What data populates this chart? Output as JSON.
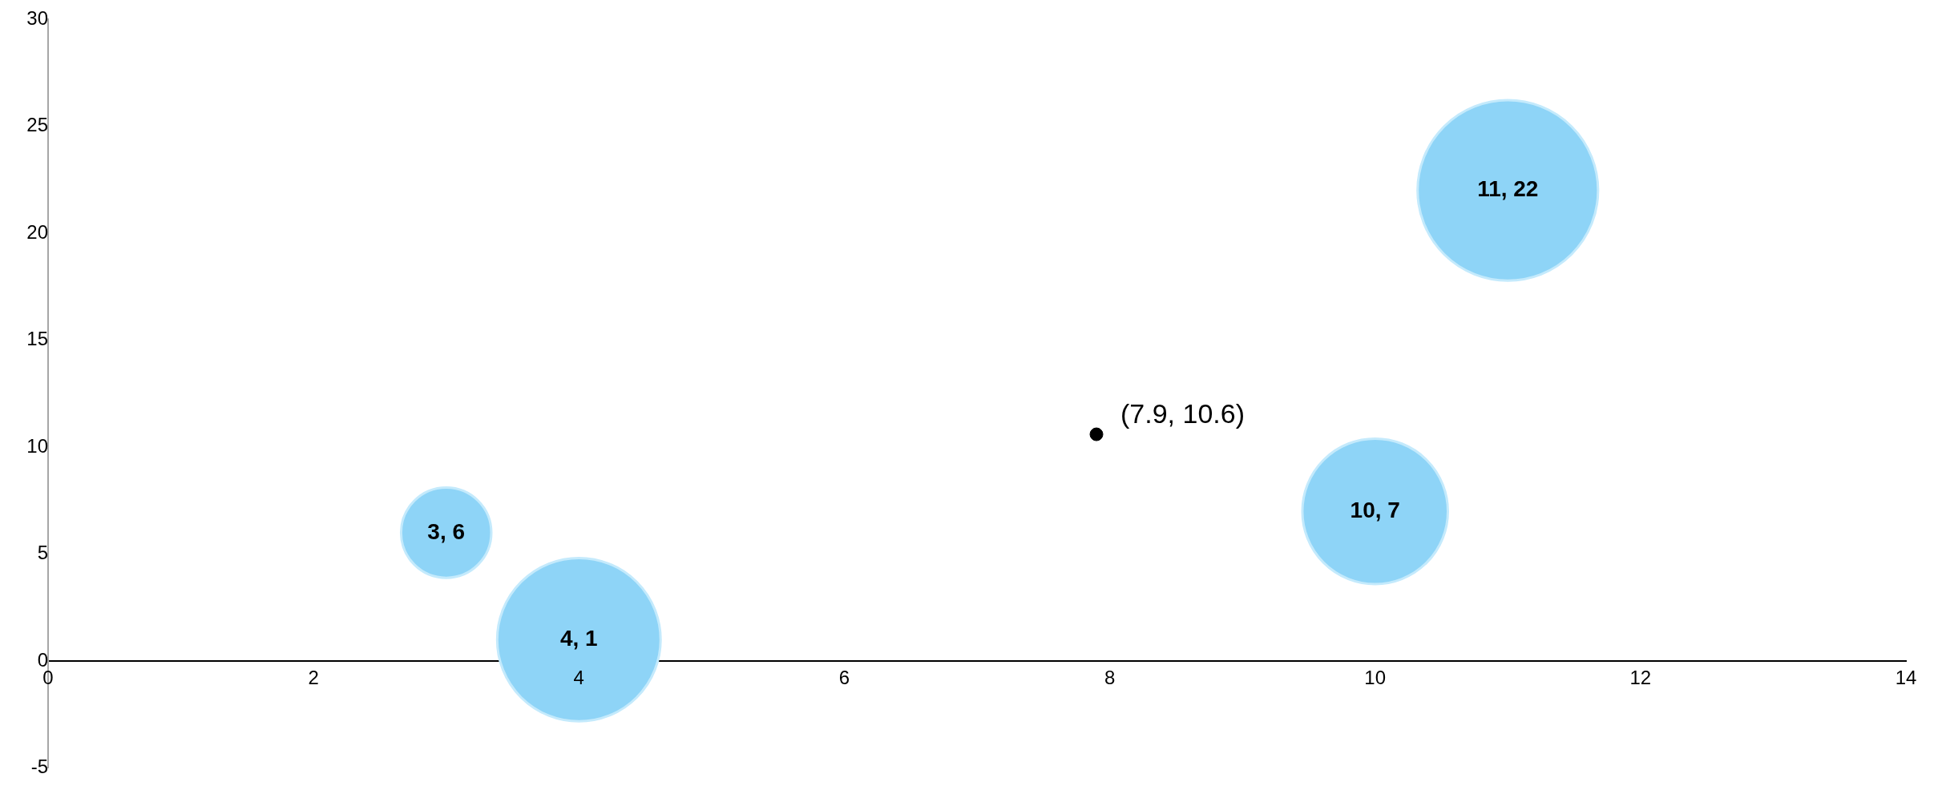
{
  "chart_data": {
    "type": "bubble",
    "xlim": [
      0,
      14
    ],
    "xticks": [
      0,
      2,
      4,
      6,
      8,
      10,
      12,
      14
    ],
    "ylim": [
      -5,
      30
    ],
    "yticks": [
      -5,
      0,
      5,
      10,
      15,
      20,
      25,
      30
    ],
    "grid": false,
    "legend": false,
    "series": [
      {
        "type": "bubble",
        "color": "#8ed4f7",
        "x": [
          3,
          4,
          10,
          11
        ],
        "values": [
          6,
          1,
          7,
          22
        ],
        "sizes": [
          0.25,
          0.82,
          0.65,
          1
        ],
        "value_labels": [
          "3, 6",
          "4, 1",
          "10, 7",
          "11, 22"
        ]
      },
      {
        "type": "scatter",
        "color": "#000000",
        "marker": "circle",
        "x": [
          7.9
        ],
        "values": [
          10.6
        ]
      }
    ],
    "annotations": [
      {
        "text": "(7.9, 10.6)",
        "x": 7.9,
        "y": 10.6
      }
    ]
  }
}
